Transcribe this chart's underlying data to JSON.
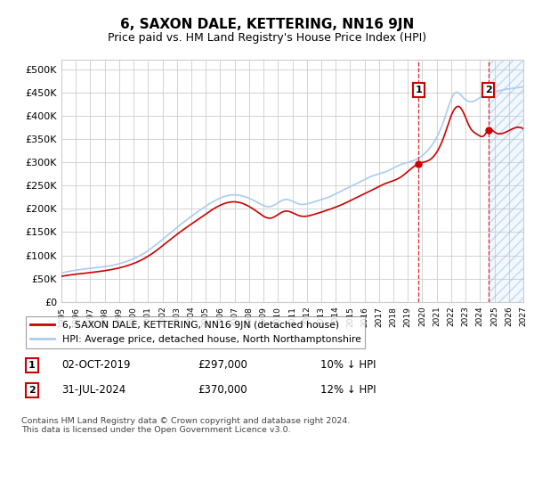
{
  "title": "6, SAXON DALE, KETTERING, NN16 9JN",
  "subtitle": "Price paid vs. HM Land Registry's House Price Index (HPI)",
  "hpi_color": "#aaccee",
  "price_color": "#cc0000",
  "ylim": [
    0,
    520000
  ],
  "yticks": [
    0,
    50000,
    100000,
    150000,
    200000,
    250000,
    300000,
    350000,
    400000,
    450000,
    500000
  ],
  "sale1": {
    "date_num": 2019.75,
    "price": 297000,
    "label": "1",
    "date_str": "02-OCT-2019",
    "pct": "10% ↓ HPI"
  },
  "sale2": {
    "date_num": 2024.58,
    "price": 370000,
    "label": "2",
    "date_str": "31-JUL-2024",
    "pct": "12% ↓ HPI"
  },
  "legend_line1": "6, SAXON DALE, KETTERING, NN16 9JN (detached house)",
  "legend_line2": "HPI: Average price, detached house, North Northamptonshire",
  "footnote": "Contains HM Land Registry data © Crown copyright and database right 2024.\nThis data is licensed under the Open Government Licence v3.0.",
  "xmin": 1995,
  "xmax": 2027
}
